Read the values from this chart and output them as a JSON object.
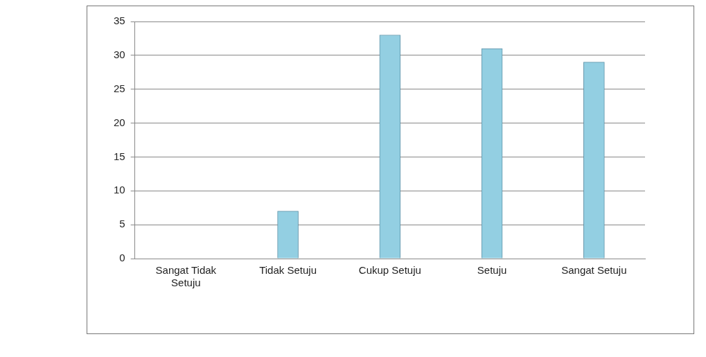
{
  "chart_data": {
    "type": "bar",
    "categories": [
      "Sangat Tidak Setuju",
      "Tidak Setuju",
      "Cukup Setuju",
      "Setuju",
      "Sangat Setuju"
    ],
    "values": [
      0,
      7,
      33,
      31,
      29
    ],
    "color": "#93cfe2",
    "ylim": [
      0,
      35
    ],
    "yticks": [
      0,
      5,
      10,
      15,
      20,
      25,
      30,
      35
    ],
    "grid": "y",
    "legend": false
  }
}
